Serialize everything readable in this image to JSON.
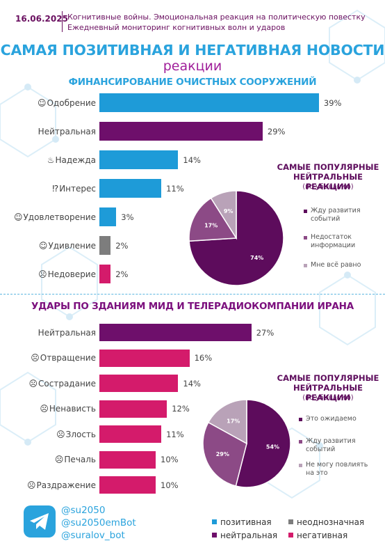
{
  "header": {
    "date": "16.06.2025",
    "line1": "Когнитивные войны. Эмоциональная реакция на политическую повестку",
    "line2": "Ежедневный мониторинг когнитивных волн и ударов"
  },
  "title": {
    "main": "САМАЯ ПОЗИТИВНАЯ И НЕГАТИВНАЯ НОВОСТИ",
    "sub": "реакции"
  },
  "colors": {
    "positive": "#1e9bd8",
    "neutral": "#6e0f6b",
    "ambiguous": "#7d7d7d",
    "negative": "#d41b6b",
    "pie_dark": "#5d0c5c",
    "pie_mid": "#8c4a86",
    "pie_light": "#b9a2b8"
  },
  "chart_data": [
    {
      "type": "bar",
      "title": "ФИНАНСИРОВАНИЕ ОЧИСТНЫХ СООРУЖЕНИЙ",
      "categories": [
        "Одобрение",
        "Нейтральная",
        "Надежда",
        "Интерес",
        "Удовлетворение",
        "Удивление",
        "Недоверие"
      ],
      "values": [
        39,
        29,
        14,
        11,
        3,
        2,
        2
      ],
      "value_labels": [
        "39%",
        "29%",
        "14%",
        "11%",
        "3%",
        "2%",
        "2%"
      ],
      "kinds": [
        "positive",
        "neutral",
        "positive",
        "positive",
        "positive",
        "ambiguous",
        "negative"
      ],
      "icons": [
        "approval-icon",
        "",
        "hope-icon",
        "interest-icon",
        "satisfaction-icon",
        "surprise-icon",
        "distrust-icon"
      ],
      "icon_glyphs": [
        "☺",
        "",
        "♨",
        "⁉",
        "☺",
        "☺",
        "☹"
      ]
    },
    {
      "type": "pie",
      "title": "САМЫЕ ПОПУЛЯРНЫЕ НЕЙТРАЛЬНЫЕ РЕАКЦИИ",
      "subtitle": "(по убыванию)",
      "labels": [
        "Жду развития событий",
        "Недостаток информации",
        "Мне всё равно"
      ],
      "values": [
        74,
        17,
        9
      ],
      "value_labels": [
        "74%",
        "17%",
        "9%"
      ],
      "colors": [
        "#5d0c5c",
        "#8c4a86",
        "#b9a2b8"
      ]
    },
    {
      "type": "bar",
      "title": "УДАРЫ ПО ЗДАНИЯМ МИД И ТЕЛЕРАДИОКОМПАНИИ ИРАНА",
      "categories": [
        "Нейтральная",
        "Отвращение",
        "Сострадание",
        "Ненависть",
        "Злость",
        "Печаль",
        "Раздражение"
      ],
      "values": [
        27,
        16,
        14,
        12,
        11,
        10,
        10
      ],
      "value_labels": [
        "27%",
        "16%",
        "14%",
        "12%",
        "11%",
        "10%",
        "10%"
      ],
      "kinds": [
        "neutral",
        "negative",
        "negative",
        "negative",
        "negative",
        "negative",
        "negative"
      ],
      "icons": [
        "",
        "disgust-icon",
        "compassion-icon",
        "hatred-icon",
        "anger-icon",
        "sadness-icon",
        "irritation-icon"
      ],
      "icon_glyphs": [
        "",
        "☹",
        "☹",
        "☹",
        "☹",
        "☹",
        "☹"
      ]
    },
    {
      "type": "pie",
      "title": "САМЫЕ ПОПУЛЯРНЫЕ НЕЙТРАЛЬНЫЕ РЕАКЦИИ",
      "subtitle": "(по убыванию)",
      "labels": [
        "Это ожидаемо",
        "Жду развития событий",
        "Не могу повлиять на это"
      ],
      "values": [
        54,
        29,
        17
      ],
      "value_labels": [
        "54%",
        "29%",
        "17%"
      ],
      "colors": [
        "#5d0c5c",
        "#8c4a86",
        "#b9a2b8"
      ]
    }
  ],
  "footer": {
    "handles": [
      "@su2050",
      "@su2050emBot",
      "@suralov_bot"
    ],
    "legend": [
      {
        "label": "позитивная",
        "kind": "positive"
      },
      {
        "label": "неоднозначная",
        "kind": "ambiguous"
      },
      {
        "label": "нейтральная",
        "kind": "neutral"
      },
      {
        "label": "негативная",
        "kind": "negative"
      }
    ]
  }
}
